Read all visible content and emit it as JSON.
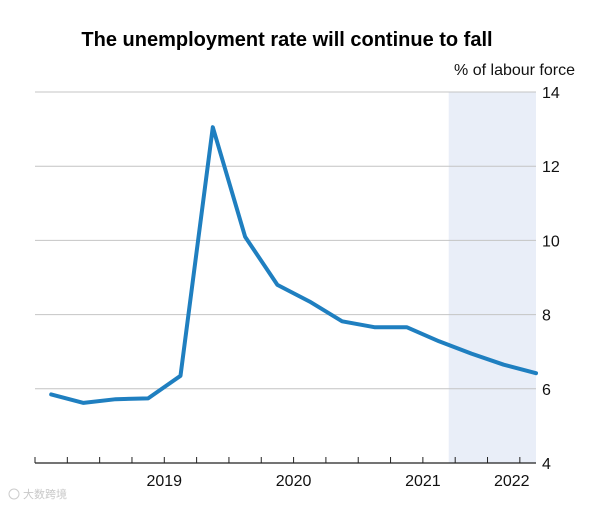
{
  "chart_data": {
    "type": "line",
    "title": "The unemployment rate will continue to fall",
    "ylabel": "% of labour force",
    "xlabel": "",
    "y_axis_side": "right",
    "ylim": [
      4,
      14
    ],
    "yticks": [
      4,
      6,
      8,
      10,
      12,
      14
    ],
    "x_period_labels": [
      "2019",
      "2020",
      "2021",
      "2022"
    ],
    "xlim": [
      2018.5,
      2022.375
    ],
    "x_tick_marks": [
      2018.5,
      2018.75,
      2019,
      2019.25,
      2019.5,
      2019.75,
      2020,
      2020.25,
      2020.5,
      2020.75,
      2021,
      2021.25,
      2021.5,
      2021.75,
      2022,
      2022.25
    ],
    "forecast_start": 2021.7,
    "forecast_shade_color": "#e9eef8",
    "grid": true,
    "series": [
      {
        "color": "#1f7fc0",
        "points": [
          [
            2018.625,
            5.85
          ],
          [
            2018.875,
            5.62
          ],
          [
            2019.125,
            5.72
          ],
          [
            2019.375,
            5.74
          ],
          [
            2019.625,
            6.35
          ],
          [
            2019.875,
            13.05
          ],
          [
            2020.125,
            10.1
          ],
          [
            2020.375,
            8.8
          ],
          [
            2020.625,
            8.35
          ],
          [
            2020.875,
            7.82
          ],
          [
            2021.125,
            7.66
          ],
          [
            2021.375,
            7.66
          ],
          [
            2021.625,
            7.28
          ],
          [
            2021.875,
            6.95
          ],
          [
            2022.125,
            6.65
          ],
          [
            2022.375,
            6.42
          ]
        ]
      }
    ]
  },
  "watermark": "大数跨境"
}
